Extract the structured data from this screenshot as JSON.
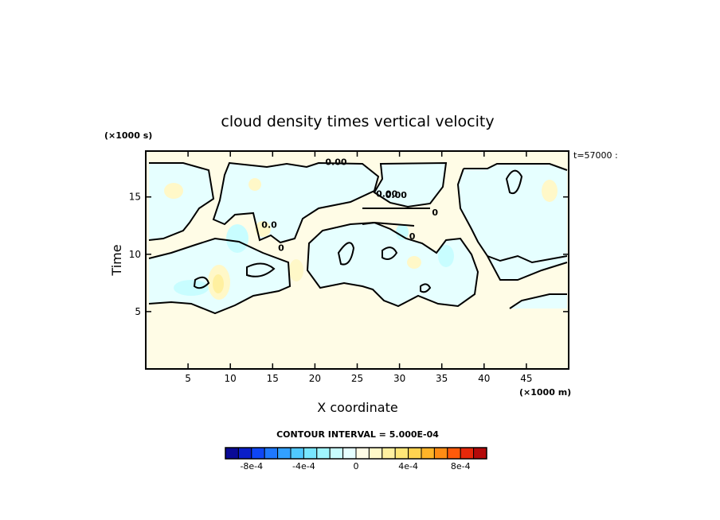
{
  "chart_data": {
    "type": "heatmap",
    "title": "cloud density times vertical velocity",
    "xlabel": "X coordinate",
    "ylabel": "Time",
    "x_unit": "(×1000 m)",
    "y_unit": "(×1000 s)",
    "xlim": [
      0,
      50
    ],
    "ylim": [
      0,
      19
    ],
    "x_ticks": [
      5,
      10,
      15,
      20,
      25,
      30,
      35,
      40,
      45
    ],
    "y_ticks": [
      5,
      10,
      15
    ],
    "corner_label": "t=57000 :",
    "contour_interval_text": "CONTOUR INTERVAL = 5.000E-04",
    "contour_labels": [
      {
        "x": 22.5,
        "y": 17.8,
        "text": "0.00"
      },
      {
        "x": 28.5,
        "y": 15.0,
        "text": "0.00"
      },
      {
        "x": 29.6,
        "y": 14.9,
        "text": "0.00"
      },
      {
        "x": 14.6,
        "y": 12.3,
        "text": "0.0"
      },
      {
        "x": 16.0,
        "y": 10.3,
        "text": "0"
      },
      {
        "x": 31.5,
        "y": 11.3,
        "text": "0"
      },
      {
        "x": 34.2,
        "y": 13.4,
        "text": "0"
      }
    ],
    "colorbar": {
      "levels": [
        -0.001,
        -0.0009,
        -0.0008,
        -0.0007,
        -0.0006,
        -0.0005,
        -0.0004,
        -0.0003,
        -0.0002,
        -0.0001,
        0,
        0.0001,
        0.0002,
        0.0003,
        0.0004,
        0.0005,
        0.0006,
        0.0007,
        0.0008,
        0.0009,
        0.001
      ],
      "colors": [
        "#0a0a96",
        "#0a1ec8",
        "#0f46f5",
        "#1e78ff",
        "#32a0ff",
        "#50c8ff",
        "#78e6ff",
        "#a0f5ff",
        "#c8fdff",
        "#e6ffff",
        "#fffce6",
        "#fff8c8",
        "#fff0a0",
        "#ffe678",
        "#ffd250",
        "#ffb428",
        "#ff8c14",
        "#ff5a0a",
        "#e6280a",
        "#b40a0a"
      ],
      "tick_labels": [
        "-8e-4",
        "-4e-4",
        "0",
        "4e-4",
        "8e-4"
      ],
      "tick_values": [
        -0.0008,
        -0.0004,
        0,
        0.0004,
        0.0008
      ]
    }
  }
}
